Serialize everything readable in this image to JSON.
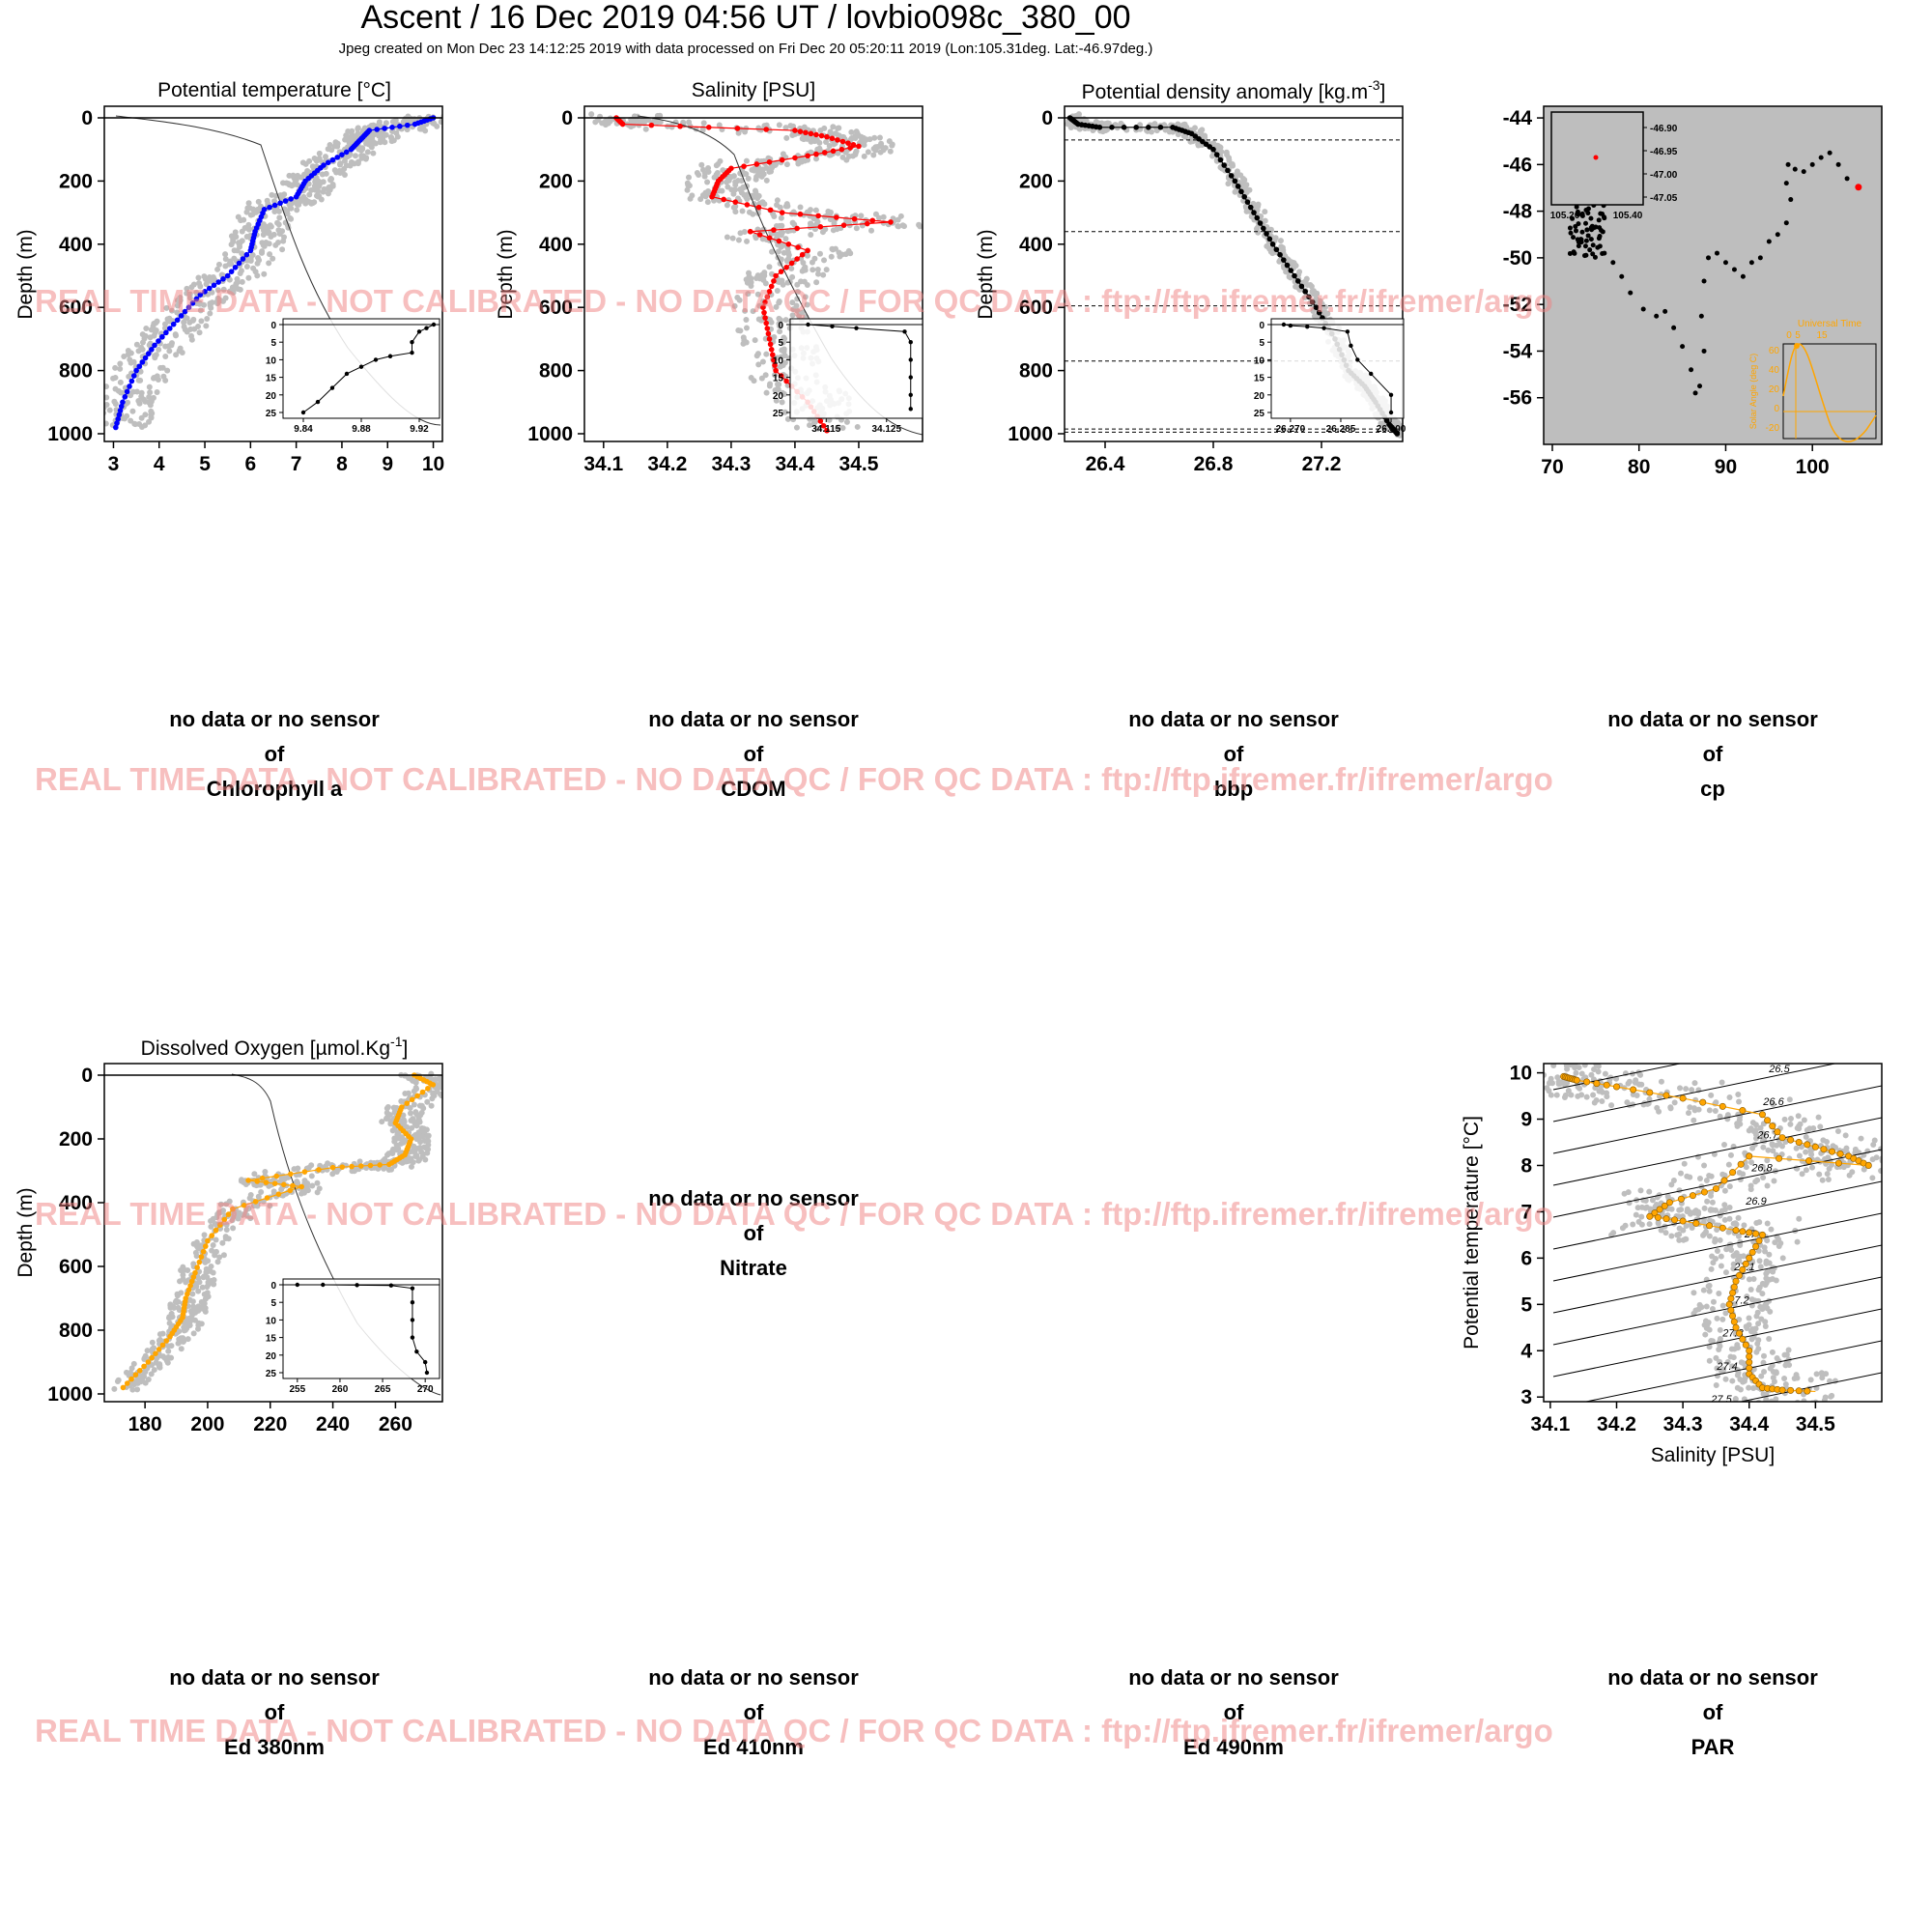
{
  "header": {
    "title": "Ascent / 16 Dec 2019 04:56 UT /  lovbio098c_380_00",
    "subtitle": "Jpeg created on Mon Dec 23 14:12:25 2019 with data processed on Fri Dec 20 05:20:11 2019 (Lon:105.31deg. Lat:-46.97deg.)"
  },
  "watermark": "REAL TIME DATA - NOT CALIBRATED - NO DATA QC   /  FOR QC DATA : ftp://ftp.ifremer.fr/ifremer/argo",
  "colors": {
    "background_cloud": "#bebebe",
    "temperature": "#0000ff",
    "salinity": "#ff0000",
    "density": "#000000",
    "oxygen": "#ffa500",
    "watermark": "#f08080"
  },
  "empty_panels": [
    {
      "line1": "no data or no sensor",
      "line2": "of",
      "line3": "Chlorophyll a"
    },
    {
      "line1": "no data or no sensor",
      "line2": "of",
      "line3": "CDOM"
    },
    {
      "line1": "no data or no sensor",
      "line2": "of",
      "line3": "bbp"
    },
    {
      "line1": "no data or no sensor",
      "line2": "of",
      "line3": "cp"
    },
    {
      "line1": "no data or no sensor",
      "line2": "of",
      "line3": "Nitrate"
    },
    {
      "line1": "no data or no sensor",
      "line2": "of",
      "line3": "Ed 380nm"
    },
    {
      "line1": "no data or no sensor",
      "line2": "of",
      "line3": "Ed 410nm"
    },
    {
      "line1": "no data or no sensor",
      "line2": "of",
      "line3": "Ed 490nm"
    },
    {
      "line1": "no data or no sensor",
      "line2": "of",
      "line3": "PAR"
    }
  ],
  "chart_data": [
    {
      "id": "temperature",
      "type": "scatter",
      "title": "Potential temperature [°C]",
      "ylabel": "Depth (m)",
      "xlim": [
        2.8,
        10.2
      ],
      "ylim": [
        1000,
        0
      ],
      "xticks": [
        "3",
        "4",
        "5",
        "6",
        "7",
        "8",
        "9",
        "10"
      ],
      "yticks": [
        "0",
        "200",
        "400",
        "600",
        "800",
        "1000"
      ],
      "profile": [
        [
          10,
          0
        ],
        [
          9.6,
          20
        ],
        [
          8.6,
          40
        ],
        [
          8.4,
          70
        ],
        [
          8.2,
          100
        ],
        [
          7.6,
          150
        ],
        [
          7.2,
          200
        ],
        [
          7.0,
          250
        ],
        [
          6.3,
          290
        ],
        [
          6.1,
          360
        ],
        [
          6.0,
          420
        ],
        [
          5.5,
          500
        ],
        [
          4.9,
          560
        ],
        [
          4.4,
          640
        ],
        [
          3.9,
          720
        ],
        [
          3.5,
          800
        ],
        [
          3.2,
          900
        ],
        [
          3.05,
          980
        ]
      ],
      "inset": {
        "xticks": [
          "9.84",
          "9.88",
          "9.92"
        ],
        "yticks": [
          "0",
          "5",
          "10",
          "15",
          "20",
          "25"
        ],
        "xlim": [
          9.83,
          9.93
        ],
        "ylim": [
          25,
          0
        ],
        "points": [
          [
            9.93,
            0
          ],
          [
            9.925,
            1
          ],
          [
            9.92,
            2
          ],
          [
            9.915,
            5
          ],
          [
            9.915,
            8
          ],
          [
            9.9,
            9
          ],
          [
            9.89,
            10
          ],
          [
            9.88,
            12
          ],
          [
            9.87,
            14
          ],
          [
            9.86,
            18
          ],
          [
            9.85,
            22
          ],
          [
            9.84,
            25
          ]
        ]
      }
    },
    {
      "id": "salinity",
      "type": "scatter",
      "title": "Salinity [PSU]",
      "ylabel": "Depth (m)",
      "xlim": [
        34.07,
        34.6
      ],
      "ylim": [
        1000,
        0
      ],
      "xticks": [
        "34.1",
        "34.2",
        "34.3",
        "34.4",
        "34.5"
      ],
      "yticks": [
        "0",
        "200",
        "400",
        "600",
        "800",
        "1000"
      ],
      "profile": [
        [
          34.12,
          0
        ],
        [
          34.13,
          20
        ],
        [
          34.4,
          40
        ],
        [
          34.45,
          60
        ],
        [
          34.5,
          90
        ],
        [
          34.42,
          120
        ],
        [
          34.3,
          160
        ],
        [
          34.28,
          200
        ],
        [
          34.27,
          250
        ],
        [
          34.38,
          300
        ],
        [
          34.55,
          330
        ],
        [
          34.33,
          360
        ],
        [
          34.42,
          420
        ],
        [
          34.37,
          500
        ],
        [
          34.35,
          600
        ],
        [
          34.36,
          700
        ],
        [
          34.37,
          800
        ],
        [
          34.42,
          900
        ],
        [
          34.45,
          990
        ]
      ],
      "inset": {
        "xticks": [
          "34.115",
          "34.125"
        ],
        "yticks": [
          "0",
          "5",
          "10",
          "15",
          "20",
          "25"
        ],
        "xlim": [
          34.11,
          34.13
        ],
        "ylim": [
          25,
          0
        ],
        "points": [
          [
            34.112,
            0
          ],
          [
            34.116,
            0.5
          ],
          [
            34.12,
            1
          ],
          [
            34.128,
            2
          ],
          [
            34.129,
            5
          ],
          [
            34.129,
            10
          ],
          [
            34.129,
            15
          ],
          [
            34.129,
            20
          ],
          [
            34.129,
            24
          ]
        ]
      }
    },
    {
      "id": "density",
      "type": "scatter",
      "title": "Potential density anomaly [kg.m-3]",
      "ylabel": "Depth (m)",
      "xlim": [
        26.25,
        27.5
      ],
      "ylim": [
        1000,
        0
      ],
      "xticks": [
        "26.4",
        "26.8",
        "27.2"
      ],
      "yticks": [
        "0",
        "200",
        "400",
        "600",
        "800",
        "1000"
      ],
      "mld_depths": [
        70,
        360,
        595,
        770,
        985,
        995
      ],
      "profile": [
        [
          26.27,
          0
        ],
        [
          26.3,
          20
        ],
        [
          26.38,
          30
        ],
        [
          26.65,
          30
        ],
        [
          26.72,
          50
        ],
        [
          26.8,
          100
        ],
        [
          26.88,
          200
        ],
        [
          26.95,
          300
        ],
        [
          27.02,
          400
        ],
        [
          27.1,
          500
        ],
        [
          27.18,
          600
        ],
        [
          27.25,
          700
        ],
        [
          27.3,
          800
        ],
        [
          27.36,
          850
        ],
        [
          27.4,
          900
        ],
        [
          27.45,
          970
        ],
        [
          27.48,
          1000
        ]
      ],
      "inset": {
        "xticks": [
          "26.270",
          "26.285",
          "26.300"
        ],
        "yticks": [
          "0",
          "5",
          "10",
          "15",
          "20",
          "25"
        ],
        "xlim": [
          26.266,
          26.302
        ],
        "ylim": [
          25,
          0
        ],
        "points": [
          [
            26.268,
            0
          ],
          [
            26.27,
            0.3
          ],
          [
            26.275,
            0.6
          ],
          [
            26.28,
            1
          ],
          [
            26.287,
            2
          ],
          [
            26.288,
            6
          ],
          [
            26.29,
            10
          ],
          [
            26.294,
            14
          ],
          [
            26.3,
            20
          ],
          [
            26.3,
            25
          ]
        ]
      }
    },
    {
      "id": "trajectory",
      "type": "scatter",
      "xlim": [
        69,
        108
      ],
      "ylim": [
        -58,
        -43.5
      ],
      "xticks": [
        "70",
        "80",
        "90",
        "100"
      ],
      "yticks": [
        "-44",
        "-46",
        "-48",
        "-50",
        "-52",
        "-54",
        "-56"
      ],
      "track": [
        [
          73,
          -47.5
        ],
        [
          73.5,
          -48.2
        ],
        [
          74,
          -48.8
        ],
        [
          74.5,
          -49.2
        ],
        [
          75.5,
          -49.5
        ],
        [
          76,
          -49.8
        ],
        [
          77,
          -50.2
        ],
        [
          78,
          -50.8
        ],
        [
          79,
          -51.5
        ],
        [
          80.5,
          -52.2
        ],
        [
          82,
          -52.5
        ],
        [
          83,
          -52.3
        ],
        [
          84,
          -53
        ],
        [
          85,
          -53.8
        ],
        [
          86,
          -54.8
        ],
        [
          86.5,
          -55.8
        ],
        [
          87,
          -55.5
        ],
        [
          87.5,
          -54
        ],
        [
          87.2,
          -52.5
        ],
        [
          87.5,
          -51
        ],
        [
          88,
          -50
        ],
        [
          89,
          -49.8
        ],
        [
          90,
          -50.2
        ],
        [
          91,
          -50.5
        ],
        [
          92,
          -50.8
        ],
        [
          93,
          -50.2
        ],
        [
          94,
          -50
        ],
        [
          95,
          -49.3
        ],
        [
          96,
          -49
        ],
        [
          97,
          -48.5
        ],
        [
          97.5,
          -47.5
        ],
        [
          97,
          -46.8
        ],
        [
          97.2,
          -46
        ],
        [
          98,
          -46.2
        ],
        [
          99,
          -46.3
        ],
        [
          100,
          -46
        ],
        [
          101,
          -45.7
        ],
        [
          102,
          -45.5
        ],
        [
          103,
          -46
        ],
        [
          104,
          -46.6
        ],
        [
          105.31,
          -46.97
        ]
      ],
      "last_position": [
        105.31,
        -46.97
      ],
      "inset_map": {
        "yticks": [
          "-46.90",
          "-46.95",
          "-47.00",
          "-47.05"
        ],
        "xticks": [
          "105.20",
          "105.40"
        ]
      },
      "sun_inset": {
        "title": "Universal Time",
        "xticks": [
          "0",
          "5",
          "15"
        ],
        "yticks": [
          "60",
          "40",
          "20",
          "0",
          "-20"
        ],
        "ylabel": "Solar Angle (deg C)"
      }
    },
    {
      "id": "oxygen",
      "type": "scatter",
      "title": "Dissolved Oxygen [µmol.Kg-1]",
      "ylabel": "Depth (m)",
      "xlim": [
        167,
        275
      ],
      "ylim": [
        1000,
        0
      ],
      "xticks": [
        "180",
        "200",
        "220",
        "240",
        "260"
      ],
      "yticks": [
        "0",
        "200",
        "400",
        "600",
        "800",
        "1000"
      ],
      "profile": [
        [
          266,
          0
        ],
        [
          272,
          30
        ],
        [
          262,
          100
        ],
        [
          260,
          150
        ],
        [
          265,
          200
        ],
        [
          263,
          250
        ],
        [
          258,
          280
        ],
        [
          240,
          290
        ],
        [
          213,
          330
        ],
        [
          230,
          350
        ],
        [
          208,
          420
        ],
        [
          200,
          520
        ],
        [
          196,
          620
        ],
        [
          193,
          700
        ],
        [
          192,
          760
        ],
        [
          188,
          820
        ],
        [
          181,
          900
        ],
        [
          173,
          980
        ]
      ],
      "inset": {
        "xticks": [
          "255",
          "260",
          "265",
          "270"
        ],
        "yticks": [
          "0",
          "5",
          "10",
          "15",
          "20",
          "25"
        ],
        "xlim": [
          254,
          271
        ],
        "ylim": [
          25,
          0
        ],
        "points": [
          [
            255,
            0
          ],
          [
            258,
            0
          ],
          [
            262,
            0.1
          ],
          [
            266,
            0.2
          ],
          [
            268.5,
            1
          ],
          [
            268.5,
            5
          ],
          [
            268.5,
            10
          ],
          [
            268.5,
            15
          ],
          [
            269,
            19
          ],
          [
            270,
            22
          ],
          [
            270.2,
            25
          ]
        ]
      }
    },
    {
      "id": "ts_diagram",
      "type": "scatter",
      "xlabel": "Salinity [PSU]",
      "ylabel": "Potential temperature [°C]",
      "xlim": [
        34.09,
        34.6
      ],
      "ylim": [
        2.9,
        10.2
      ],
      "xticks": [
        "34.1",
        "34.2",
        "34.3",
        "34.4",
        "34.5"
      ],
      "yticks": [
        "3",
        "4",
        "5",
        "6",
        "7",
        "8",
        "9",
        "10"
      ],
      "isopycnals": [
        "26.4",
        "26.5",
        "26.6",
        "26.7",
        "26.8",
        "26.9",
        "27",
        "27.1",
        "27.2",
        "27.3",
        "27.4",
        "27.5"
      ],
      "points": [
        [
          34.12,
          9.92
        ],
        [
          34.13,
          9.88
        ],
        [
          34.14,
          9.84
        ],
        [
          34.2,
          9.7
        ],
        [
          34.3,
          9.45
        ],
        [
          34.42,
          9.1
        ],
        [
          34.45,
          8.6
        ],
        [
          34.5,
          8.4
        ],
        [
          34.55,
          8.2
        ],
        [
          34.58,
          8.0
        ],
        [
          34.4,
          8.2
        ],
        [
          34.35,
          7.5
        ],
        [
          34.28,
          7.2
        ],
        [
          34.25,
          6.9
        ],
        [
          34.3,
          6.8
        ],
        [
          34.38,
          6.6
        ],
        [
          34.42,
          6.5
        ],
        [
          34.4,
          6.0
        ],
        [
          34.38,
          5.5
        ],
        [
          34.37,
          5.0
        ],
        [
          34.38,
          4.5
        ],
        [
          34.4,
          4.0
        ],
        [
          34.4,
          3.5
        ],
        [
          34.42,
          3.2
        ],
        [
          34.45,
          3.15
        ],
        [
          34.5,
          3.12
        ]
      ]
    }
  ]
}
